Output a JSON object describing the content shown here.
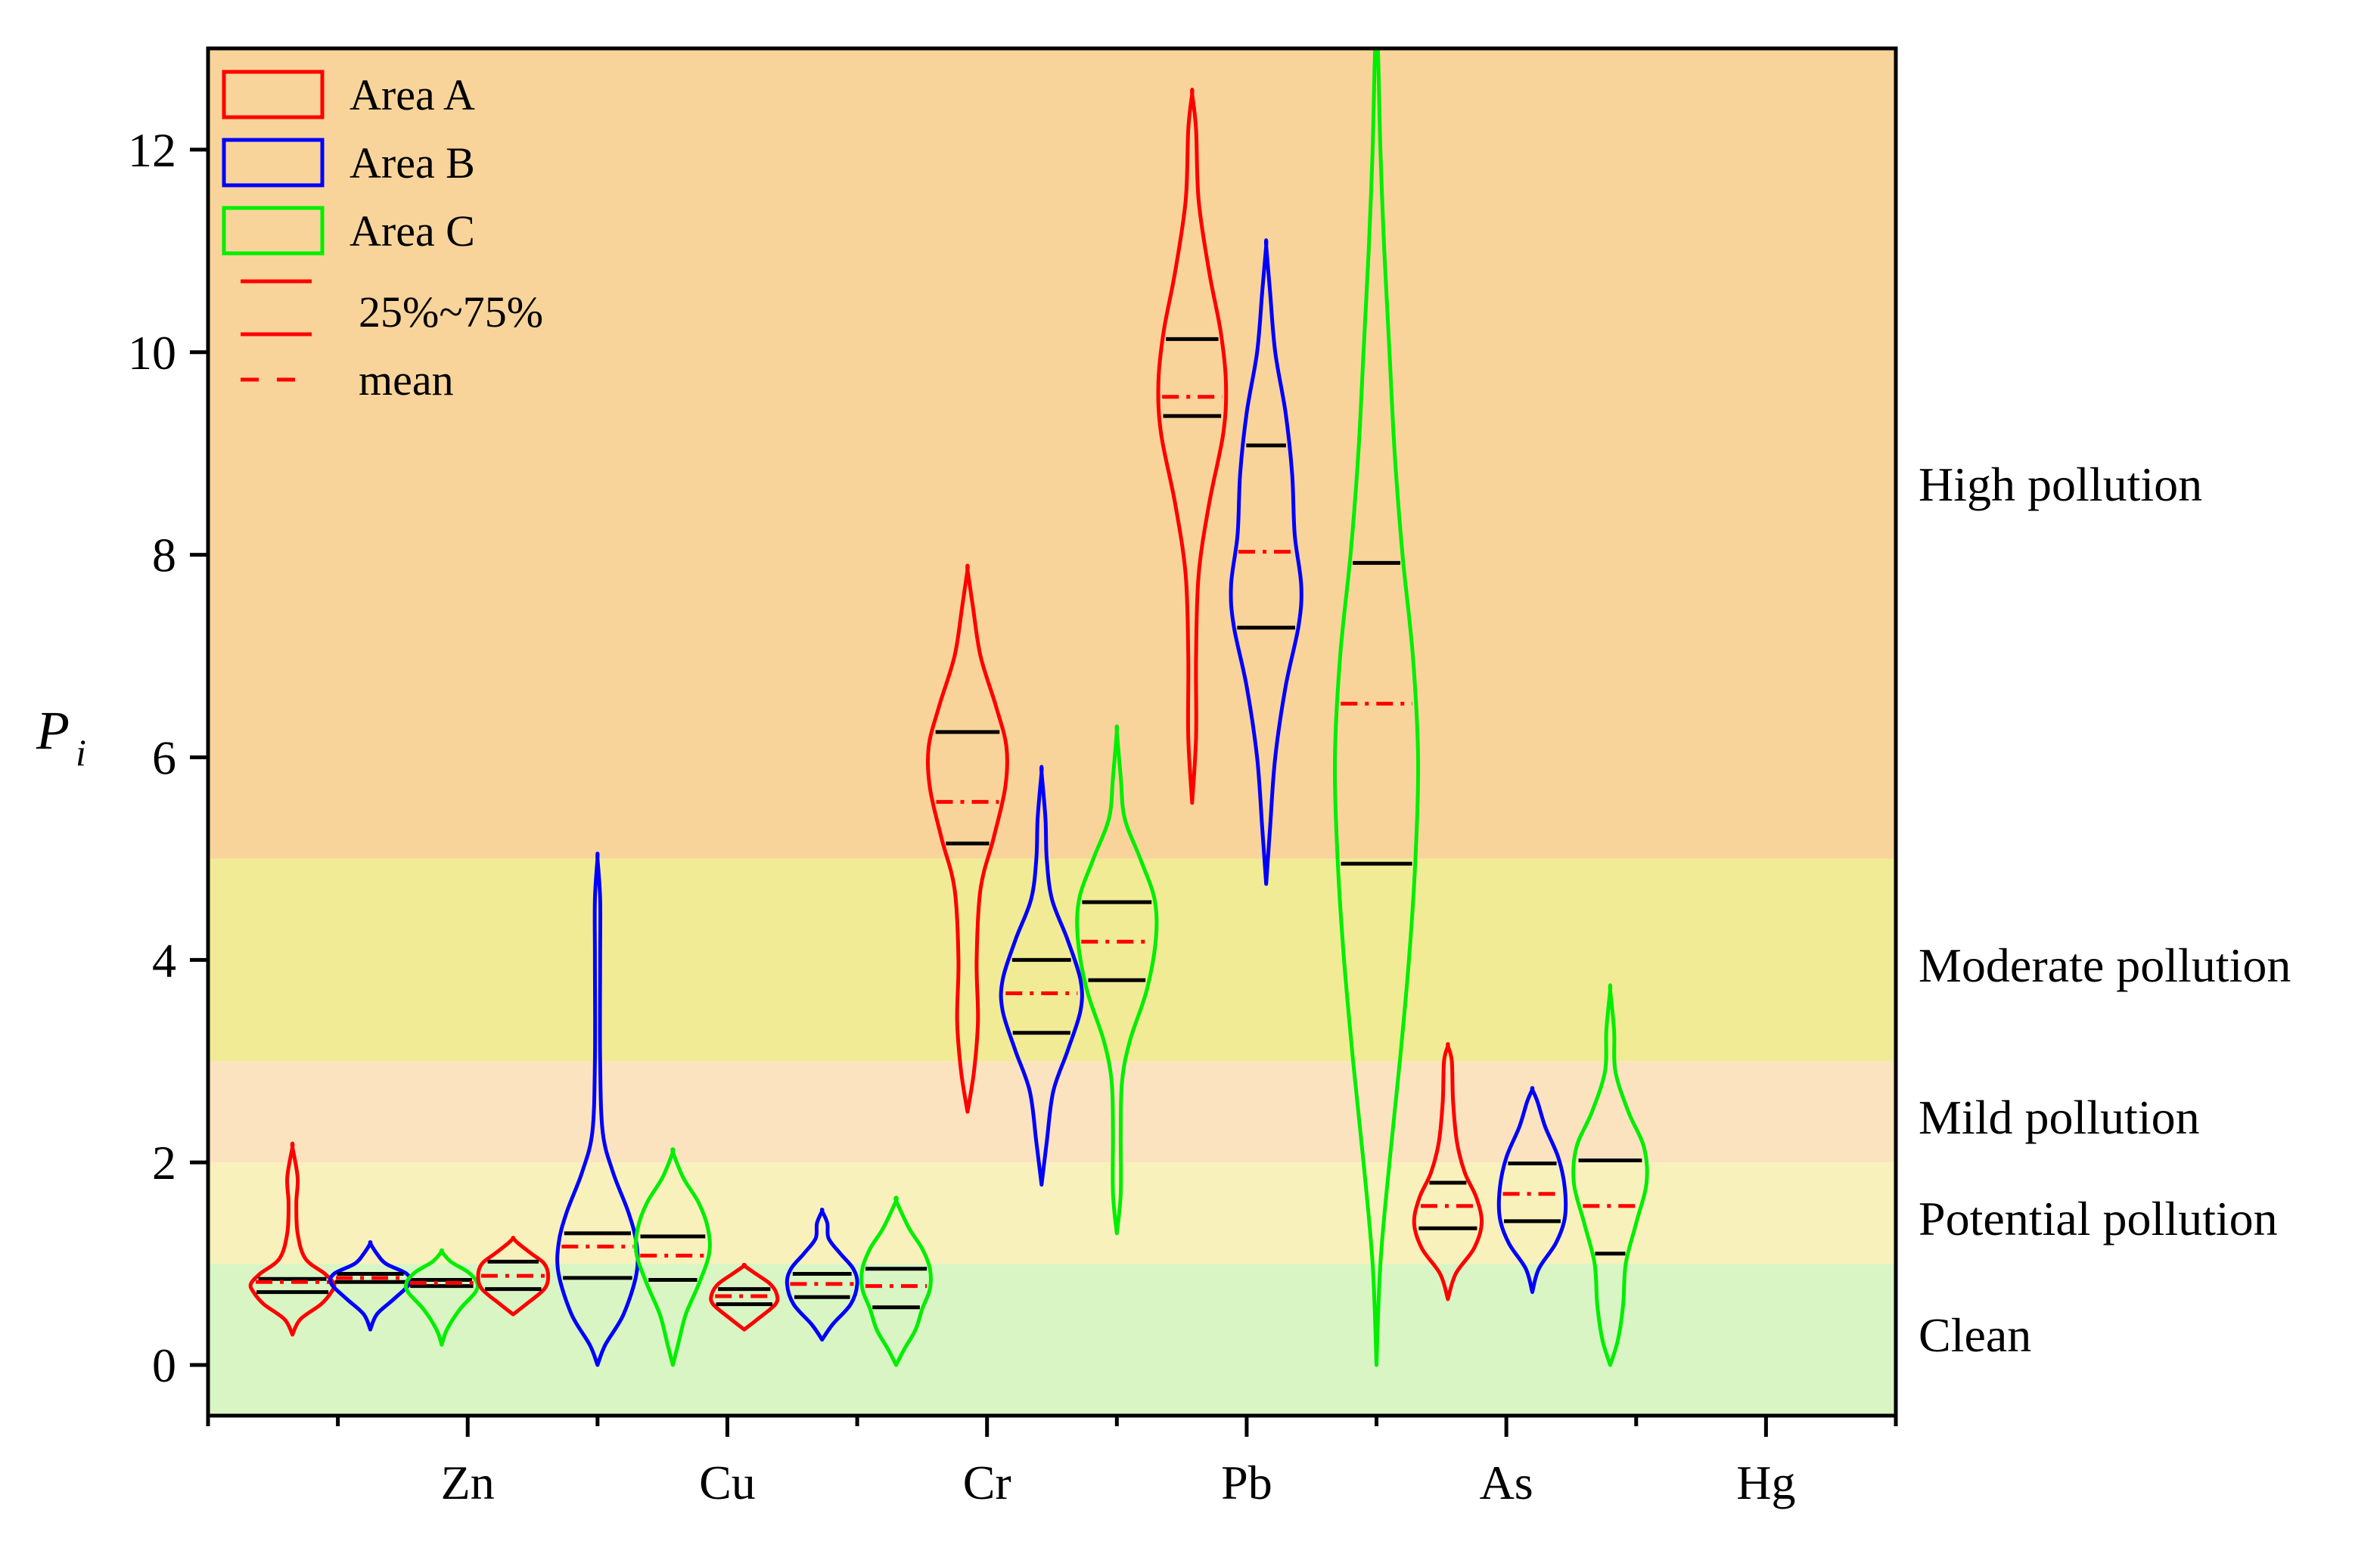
{
  "chart_data": {
    "type": "violin",
    "title": "",
    "ylabel": {
      "main": "P",
      "sub": "i"
    },
    "xlabel": "",
    "ylim": [
      -0.5,
      13
    ],
    "yticks": [
      0,
      2,
      4,
      6,
      8,
      10,
      12
    ],
    "x_label_positions": [
      2,
      4,
      6,
      8,
      10,
      12
    ],
    "xlim": [
      0,
      13
    ],
    "categories": [
      "Zn",
      "Cu",
      "Cr",
      "Pb",
      "As",
      "Hg"
    ],
    "bands": [
      {
        "label": "Clean",
        "from": -0.5,
        "to": 1,
        "color": "#d9f5c4"
      },
      {
        "label": "Potential pollution",
        "from": 1,
        "to": 2,
        "color": "#f8f1bc"
      },
      {
        "label": "Mild pollution",
        "from": 2,
        "to": 3,
        "color": "#fbe3bf"
      },
      {
        "label": "Moderate pollution",
        "from": 3,
        "to": 5,
        "color": "#f1eb95"
      },
      {
        "label": "High pollution",
        "from": 5,
        "to": 13,
        "color": "#f8d49a"
      }
    ],
    "band_label_values": [
      0.3,
      1.45,
      2.45,
      3.95,
      8.7
    ],
    "legend": {
      "series": [
        {
          "name": "Area A",
          "color": "#ff0000"
        },
        {
          "name": "Area B",
          "color": "#0000ff"
        },
        {
          "name": "Area C",
          "color": "#00ee00"
        }
      ],
      "quartile_label": "25%~75%",
      "mean_label": "mean"
    },
    "violins": [
      {
        "name": "A1",
        "series": "Area A",
        "x": 0.65,
        "min": 0.3,
        "max": 2.15,
        "q1": 0.72,
        "q3": 0.85,
        "mean": 0.82,
        "profile": [
          [
            0.3,
            0
          ],
          [
            0.45,
            0.06
          ],
          [
            0.6,
            0.22
          ],
          [
            0.72,
            0.3
          ],
          [
            0.8,
            0.32
          ],
          [
            0.9,
            0.25
          ],
          [
            1.05,
            0.1
          ],
          [
            1.3,
            0.04
          ],
          [
            1.6,
            0.03
          ],
          [
            1.85,
            0.04
          ],
          [
            2.15,
            0
          ]
        ]
      },
      {
        "name": "B1",
        "series": "Area B",
        "x": 1.25,
        "min": 0.35,
        "max": 1.2,
        "q1": 0.82,
        "q3": 0.9,
        "mean": 0.86,
        "profile": [
          [
            0.35,
            0
          ],
          [
            0.5,
            0.05
          ],
          [
            0.65,
            0.18
          ],
          [
            0.8,
            0.3
          ],
          [
            0.9,
            0.28
          ],
          [
            1.0,
            0.12
          ],
          [
            1.1,
            0.05
          ],
          [
            1.2,
            0
          ]
        ]
      },
      {
        "name": "C1",
        "series": "Area C",
        "x": 1.8,
        "min": 0.2,
        "max": 1.12,
        "q1": 0.78,
        "q3": 0.84,
        "mean": 0.81,
        "profile": [
          [
            0.2,
            0
          ],
          [
            0.35,
            0.04
          ],
          [
            0.55,
            0.14
          ],
          [
            0.72,
            0.26
          ],
          [
            0.82,
            0.27
          ],
          [
            0.92,
            0.2
          ],
          [
            1.02,
            0.07
          ],
          [
            1.12,
            0
          ]
        ]
      },
      {
        "name": "A2",
        "series": "Area A",
        "x": 2.35,
        "min": 0.5,
        "max": 1.25,
        "q1": 0.75,
        "q3": 1.02,
        "mean": 0.88,
        "profile": [
          [
            0.5,
            0
          ],
          [
            0.6,
            0.1
          ],
          [
            0.75,
            0.24
          ],
          [
            0.88,
            0.27
          ],
          [
            1.0,
            0.24
          ],
          [
            1.1,
            0.14
          ],
          [
            1.2,
            0.04
          ],
          [
            1.25,
            0
          ]
        ]
      },
      {
        "name": "B2",
        "series": "Area B",
        "x": 3.0,
        "min": 0.0,
        "max": 5.0,
        "q1": 0.86,
        "q3": 1.3,
        "mean": 1.17,
        "profile": [
          [
            0.0,
            0
          ],
          [
            0.2,
            0.06
          ],
          [
            0.5,
            0.2
          ],
          [
            0.9,
            0.3
          ],
          [
            1.2,
            0.3
          ],
          [
            1.5,
            0.24
          ],
          [
            1.9,
            0.12
          ],
          [
            2.3,
            0.04
          ],
          [
            3.0,
            0.02
          ],
          [
            4.0,
            0.02
          ],
          [
            4.6,
            0.02
          ],
          [
            5.0,
            0
          ]
        ]
      },
      {
        "name": "C2",
        "series": "Area C",
        "x": 3.58,
        "min": 0.0,
        "max": 2.1,
        "q1": 0.84,
        "q3": 1.27,
        "mean": 1.08,
        "profile": [
          [
            0.0,
            0
          ],
          [
            0.2,
            0.04
          ],
          [
            0.5,
            0.1
          ],
          [
            0.8,
            0.2
          ],
          [
            1.1,
            0.28
          ],
          [
            1.35,
            0.27
          ],
          [
            1.6,
            0.2
          ],
          [
            1.85,
            0.08
          ],
          [
            2.1,
            0
          ]
        ]
      },
      {
        "name": "A3",
        "series": "Area A",
        "x": 4.13,
        "min": 0.35,
        "max": 0.98,
        "q1": 0.6,
        "q3": 0.75,
        "mean": 0.68,
        "profile": [
          [
            0.35,
            0
          ],
          [
            0.45,
            0.1
          ],
          [
            0.6,
            0.24
          ],
          [
            0.7,
            0.25
          ],
          [
            0.8,
            0.2
          ],
          [
            0.9,
            0.09
          ],
          [
            0.98,
            0
          ]
        ]
      },
      {
        "name": "B3",
        "series": "Area B",
        "x": 4.73,
        "min": 0.25,
        "max": 1.52,
        "q1": 0.67,
        "q3": 0.9,
        "mean": 0.8,
        "profile": [
          [
            0.25,
            0
          ],
          [
            0.4,
            0.08
          ],
          [
            0.6,
            0.22
          ],
          [
            0.8,
            0.27
          ],
          [
            0.95,
            0.24
          ],
          [
            1.1,
            0.14
          ],
          [
            1.25,
            0.05
          ],
          [
            1.4,
            0.04
          ],
          [
            1.52,
            0
          ]
        ]
      },
      {
        "name": "C3",
        "series": "Area C",
        "x": 5.3,
        "min": 0.0,
        "max": 1.62,
        "q1": 0.57,
        "q3": 0.95,
        "mean": 0.78,
        "profile": [
          [
            0.0,
            0
          ],
          [
            0.15,
            0.06
          ],
          [
            0.35,
            0.15
          ],
          [
            0.55,
            0.2
          ],
          [
            0.75,
            0.26
          ],
          [
            0.95,
            0.26
          ],
          [
            1.15,
            0.2
          ],
          [
            1.35,
            0.1
          ],
          [
            1.62,
            0
          ]
        ]
      },
      {
        "name": "A4",
        "series": "Area A",
        "x": 5.85,
        "min": 2.5,
        "max": 7.85,
        "q1": 5.15,
        "q3": 6.25,
        "mean": 5.56,
        "profile": [
          [
            2.5,
            0
          ],
          [
            2.9,
            0.05
          ],
          [
            3.4,
            0.08
          ],
          [
            4.0,
            0.07
          ],
          [
            4.7,
            0.1
          ],
          [
            5.2,
            0.2
          ],
          [
            5.7,
            0.29
          ],
          [
            6.1,
            0.3
          ],
          [
            6.5,
            0.22
          ],
          [
            7.0,
            0.1
          ],
          [
            7.5,
            0.04
          ],
          [
            7.85,
            0
          ]
        ]
      },
      {
        "name": "B4",
        "series": "Area B",
        "x": 6.42,
        "min": 1.78,
        "max": 5.85,
        "q1": 3.28,
        "q3": 4.0,
        "mean": 3.67,
        "profile": [
          [
            1.78,
            0
          ],
          [
            2.2,
            0.04
          ],
          [
            2.7,
            0.09
          ],
          [
            3.1,
            0.2
          ],
          [
            3.5,
            0.3
          ],
          [
            3.8,
            0.3
          ],
          [
            4.2,
            0.2
          ],
          [
            4.6,
            0.08
          ],
          [
            5.0,
            0.04
          ],
          [
            5.4,
            0.03
          ],
          [
            5.85,
            0
          ]
        ]
      },
      {
        "name": "C4",
        "series": "Area C",
        "x": 7.0,
        "min": 1.3,
        "max": 6.25,
        "q1": 3.8,
        "q3": 4.57,
        "mean": 4.18,
        "profile": [
          [
            1.3,
            0
          ],
          [
            1.7,
            0.03
          ],
          [
            2.3,
            0.03
          ],
          [
            2.8,
            0.04
          ],
          [
            3.2,
            0.1
          ],
          [
            3.7,
            0.23
          ],
          [
            4.2,
            0.3
          ],
          [
            4.6,
            0.29
          ],
          [
            5.0,
            0.18
          ],
          [
            5.4,
            0.06
          ],
          [
            5.8,
            0.03
          ],
          [
            6.25,
            0
          ]
        ]
      },
      {
        "name": "A5",
        "series": "Area A",
        "x": 7.58,
        "min": 5.55,
        "max": 12.55,
        "q1": 9.37,
        "q3": 10.13,
        "mean": 9.56,
        "profile": [
          [
            5.55,
            0
          ],
          [
            6.2,
            0.03
          ],
          [
            7.0,
            0.03
          ],
          [
            7.8,
            0.05
          ],
          [
            8.5,
            0.13
          ],
          [
            9.2,
            0.24
          ],
          [
            9.7,
            0.26
          ],
          [
            10.2,
            0.22
          ],
          [
            10.8,
            0.13
          ],
          [
            11.5,
            0.05
          ],
          [
            12.2,
            0.03
          ],
          [
            12.55,
            0
          ]
        ]
      },
      {
        "name": "B5",
        "series": "Area B",
        "x": 8.15,
        "min": 4.75,
        "max": 11.05,
        "q1": 7.28,
        "q3": 9.08,
        "mean": 8.03,
        "profile": [
          [
            4.75,
            0
          ],
          [
            5.3,
            0.03
          ],
          [
            6.0,
            0.07
          ],
          [
            6.7,
            0.15
          ],
          [
            7.3,
            0.25
          ],
          [
            7.7,
            0.27
          ],
          [
            8.2,
            0.22
          ],
          [
            8.8,
            0.2
          ],
          [
            9.4,
            0.15
          ],
          [
            10.0,
            0.07
          ],
          [
            10.6,
            0.03
          ],
          [
            11.05,
            0
          ]
        ]
      },
      {
        "name": "C5",
        "series": "Area C",
        "x": 9.0,
        "min": 0.0,
        "max": 13.0,
        "q1": 4.95,
        "q3": 7.92,
        "mean": 6.53,
        "profile": [
          [
            0.0,
            0
          ],
          [
            1.0,
            0.03
          ],
          [
            2.0,
            0.1
          ],
          [
            3.0,
            0.18
          ],
          [
            4.0,
            0.25
          ],
          [
            5.0,
            0.3
          ],
          [
            6.0,
            0.32
          ],
          [
            7.0,
            0.28
          ],
          [
            8.0,
            0.2
          ],
          [
            9.0,
            0.14
          ],
          [
            10.0,
            0.1
          ],
          [
            11.0,
            0.06
          ],
          [
            12.0,
            0.03
          ],
          [
            13.0,
            0.01
          ]
        ]
      },
      {
        "name": "A6",
        "series": "Area A",
        "x": 9.55,
        "min": 0.65,
        "max": 3.15,
        "q1": 1.35,
        "q3": 1.8,
        "mean": 1.57,
        "profile": [
          [
            0.65,
            0
          ],
          [
            0.9,
            0.06
          ],
          [
            1.15,
            0.2
          ],
          [
            1.4,
            0.26
          ],
          [
            1.65,
            0.22
          ],
          [
            1.9,
            0.13
          ],
          [
            2.2,
            0.07
          ],
          [
            2.6,
            0.04
          ],
          [
            3.0,
            0.03
          ],
          [
            3.15,
            0
          ]
        ]
      },
      {
        "name": "B6",
        "series": "Area B",
        "x": 10.2,
        "min": 0.72,
        "max": 2.72,
        "q1": 1.42,
        "q3": 1.99,
        "mean": 1.69,
        "profile": [
          [
            0.72,
            0
          ],
          [
            0.95,
            0.05
          ],
          [
            1.2,
            0.18
          ],
          [
            1.45,
            0.25
          ],
          [
            1.75,
            0.25
          ],
          [
            2.05,
            0.2
          ],
          [
            2.35,
            0.1
          ],
          [
            2.6,
            0.04
          ],
          [
            2.72,
            0
          ]
        ]
      },
      {
        "name": "C6",
        "series": "Area C",
        "x": 10.8,
        "min": 0.0,
        "max": 3.7,
        "q1": 1.1,
        "q3": 2.02,
        "mean": 1.57,
        "profile": [
          [
            0.0,
            0
          ],
          [
            0.25,
            0.06
          ],
          [
            0.6,
            0.1
          ],
          [
            1.0,
            0.12
          ],
          [
            1.4,
            0.2
          ],
          [
            1.8,
            0.28
          ],
          [
            2.15,
            0.26
          ],
          [
            2.5,
            0.14
          ],
          [
            2.9,
            0.04
          ],
          [
            3.3,
            0.03
          ],
          [
            3.7,
            0
          ]
        ]
      }
    ]
  }
}
